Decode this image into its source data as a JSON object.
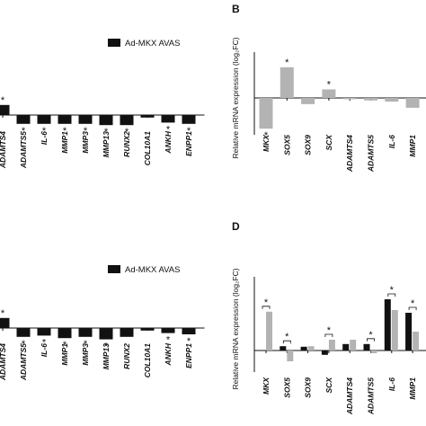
{
  "chart_data": [
    {
      "type": "bar",
      "legend": "upper right",
      "categories": [
        "ADAMTS4",
        "ADAMTS5",
        "IL-6",
        "MMP1",
        "MMP3",
        "MMP13",
        "RUNX2",
        "COL10A1",
        "ANKH",
        "ENPP1"
      ],
      "series": [
        {
          "name": "Ad-MKX AVAS",
          "color": "#111111",
          "values": [
            0.8,
            -0.7,
            -0.7,
            -0.7,
            -0.7,
            -0.8,
            -0.8,
            -0.2,
            -0.6,
            -0.7
          ]
        }
      ],
      "significance": [
        "*",
        "*",
        "*",
        "*",
        "*",
        "*",
        "*",
        null,
        "*",
        "*"
      ],
      "ylim": [
        -2,
        2
      ],
      "axis_line": false
    },
    {
      "type": "bar",
      "panel": "B",
      "ylabel": "Relative mRNA expression (log₂FC)",
      "categories": [
        "MKX",
        "SOX5",
        "SOX9",
        "SCX",
        "ADAMTS4",
        "ADAMTS5",
        "IL-6",
        "MMP1"
      ],
      "series": [
        {
          "color": "#b3b3b3",
          "values": [
            -2.5,
            2.5,
            -0.5,
            0.7,
            -0.1,
            -0.2,
            -0.3,
            -0.8
          ]
        }
      ],
      "significance": [
        "*",
        "*",
        null,
        "*",
        null,
        null,
        null,
        null
      ],
      "ylim": [
        -3,
        3
      ],
      "axis_line": true
    },
    {
      "type": "bar",
      "legend": "upper right",
      "categories": [
        "ADAMTS4",
        "ADAMTS5",
        "IL-6",
        "MMP1",
        "MMP3",
        "MMP13",
        "RUNX2",
        "COL10A1",
        "ANKH",
        "ENPP1"
      ],
      "series": [
        {
          "name": "Ad-MKX AVAS",
          "color": "#111111",
          "values": [
            0.8,
            -0.7,
            -0.6,
            -0.8,
            -0.7,
            -0.9,
            -0.7,
            -0.2,
            -0.4,
            -0.5
          ]
        }
      ],
      "significance": [
        "*",
        "*",
        "*",
        "*",
        "*",
        "*",
        null,
        null,
        "*",
        "*"
      ],
      "ylim": [
        -2,
        2
      ],
      "axis_line": false
    },
    {
      "type": "grouped_bar",
      "panel": "D",
      "ylabel": "Relative mRNA expression (log₂FC)",
      "categories": [
        "MKX",
        "SOX5",
        "SOX9",
        "SCX",
        "ADAMTS4",
        "ADAMTS5",
        "IL-6",
        "MMP1"
      ],
      "series": [
        {
          "color": "#111111",
          "values": [
            0,
            0.8,
            0.7,
            -0.8,
            1.2,
            1.2,
            9.5,
            7
          ]
        },
        {
          "color": "#b3b3b3",
          "values": [
            7.2,
            -2,
            0.8,
            2,
            2,
            -0.5,
            7.5,
            3.5
          ]
        }
      ],
      "significance": [
        "*",
        "*",
        null,
        "*",
        null,
        "*",
        "*",
        "*"
      ],
      "ylim": [
        -4,
        12
      ],
      "axis_line": true
    }
  ]
}
